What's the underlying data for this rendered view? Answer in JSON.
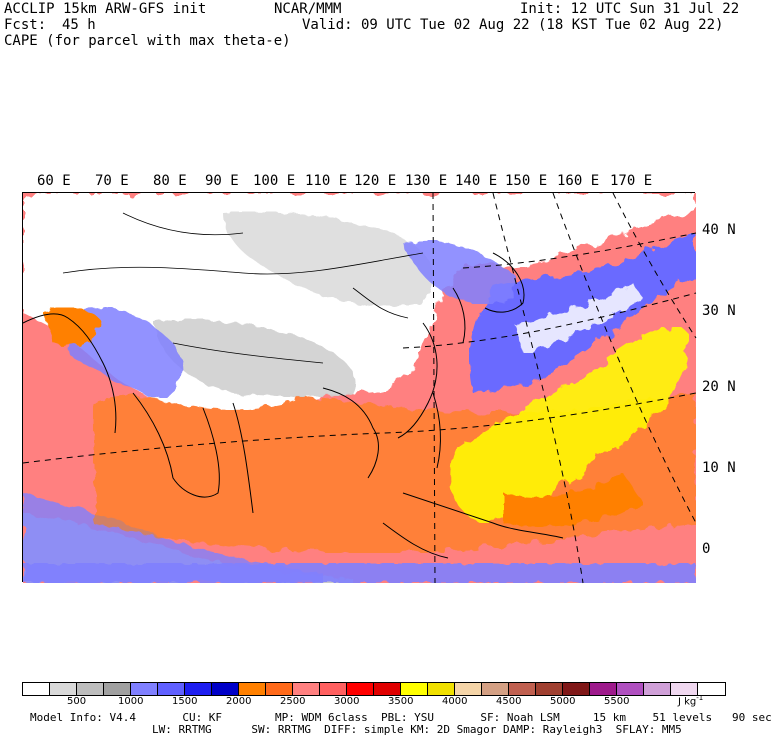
{
  "header": {
    "model": "ACCLIP 15km ARW-GFS init",
    "center": "NCAR/MMM",
    "init": "Init: 12 UTC Sun 31 Jul 22",
    "fcst_label": "Fcst:",
    "fcst_value": "45 h",
    "valid": "Valid: 09 UTC Tue 02 Aug 22 (18 KST Tue 02 Aug 22)",
    "field": "CAPE (for parcel with max theta-e)"
  },
  "map": {
    "lon_labels": [
      "60 E",
      "70 E",
      "80 E",
      "90 E",
      "100 E",
      "110 E",
      "120 E",
      "130 E",
      "140 E",
      "150 E",
      "160 E",
      "170 E"
    ],
    "lat_labels": [
      "40 N",
      "30 N",
      "20 N",
      "10 N",
      "0"
    ],
    "colors": {
      "ocean_background": "#ff8080",
      "land": "#ffffff",
      "terrain_gray": "#c8c8c8",
      "blue_light": "#8080ff",
      "blue_dark": "#1e1ef0",
      "orange": "#ff8000",
      "yellow": "#ffff00",
      "white_streaks": "#f0f0ff"
    }
  },
  "colorbar": {
    "colors": [
      "#ffffff",
      "#d9d9d9",
      "#bdbdbd",
      "#a0a0a0",
      "#8080ff",
      "#6060ff",
      "#1e1ef0",
      "#0000c8",
      "#ff8000",
      "#ff6a1a",
      "#ff8080",
      "#ff6060",
      "#ff0000",
      "#e00000",
      "#ffff00",
      "#f0e000",
      "#f5d5a8",
      "#d4a084",
      "#c06050",
      "#a04030",
      "#801818",
      "#9e1a8c",
      "#b050c0",
      "#d0a0d8",
      "#f0d8f0",
      "#ffffff"
    ],
    "ticks": [
      "500",
      "1000",
      "1500",
      "2000",
      "2500",
      "3000",
      "3500",
      "4000",
      "4500",
      "5000",
      "5500"
    ],
    "units": "J kg",
    "units_exp": "-1"
  },
  "footer": {
    "line1": "Model Info: V4.4       CU: KF        MP: WDM 6class  PBL: YSU       SF: Noah LSM     15 km    51 levels   90 sec",
    "line2": "LW: RRTMG      SW: RRTMG  DIFF: simple KM: 2D Smagor DAMP: Rayleigh3  SFLAY: MM5"
  }
}
